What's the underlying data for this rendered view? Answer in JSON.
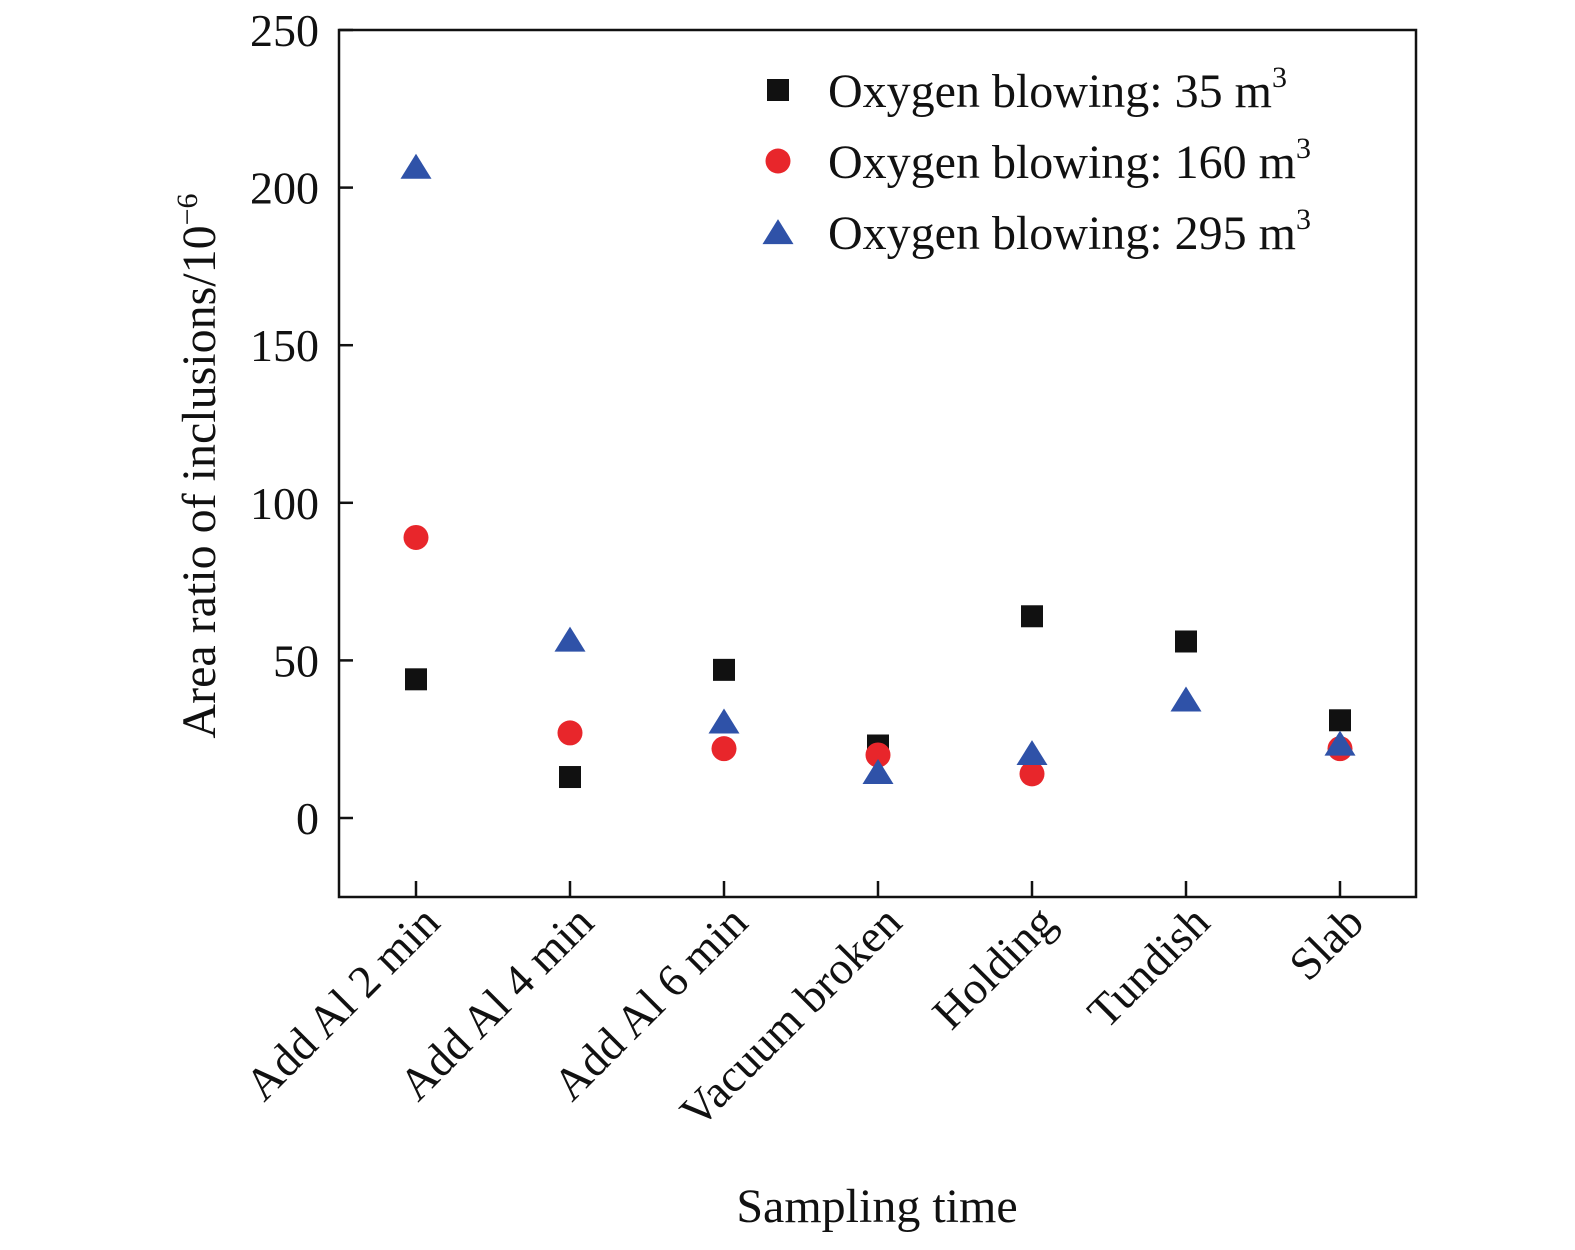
{
  "chart_data": {
    "type": "scatter",
    "title": "",
    "xlabel": "Sampling time",
    "ylabel": "Area ratio of inclusions/10",
    "ylabel_exponent": "−6",
    "ylim": [
      -25,
      250
    ],
    "yticks": [
      0,
      50,
      100,
      150,
      200,
      250
    ],
    "grid": false,
    "legend": "top-right",
    "categories": [
      "Add Al 2 min",
      "Add Al 4 min",
      "Add Al 6 min",
      "Vacuum broken",
      "Holding",
      "Tundish",
      "Slab"
    ],
    "series": [
      {
        "name": "Oxygen blowing: 35 m",
        "name_sup": "3",
        "marker": "square",
        "color": "#111111",
        "values": [
          44,
          13,
          47,
          23,
          64,
          56,
          31
        ]
      },
      {
        "name": "Oxygen blowing: 160 m",
        "name_sup": "3",
        "marker": "circle",
        "color": "#e8262b",
        "values": [
          89,
          27,
          22,
          20,
          14,
          null,
          22
        ]
      },
      {
        "name": "Oxygen blowing: 295 m",
        "name_sup": "3",
        "marker": "triangle",
        "color": "#2f52a8",
        "values": [
          206,
          56,
          30,
          14,
          20,
          37,
          23
        ]
      }
    ]
  }
}
